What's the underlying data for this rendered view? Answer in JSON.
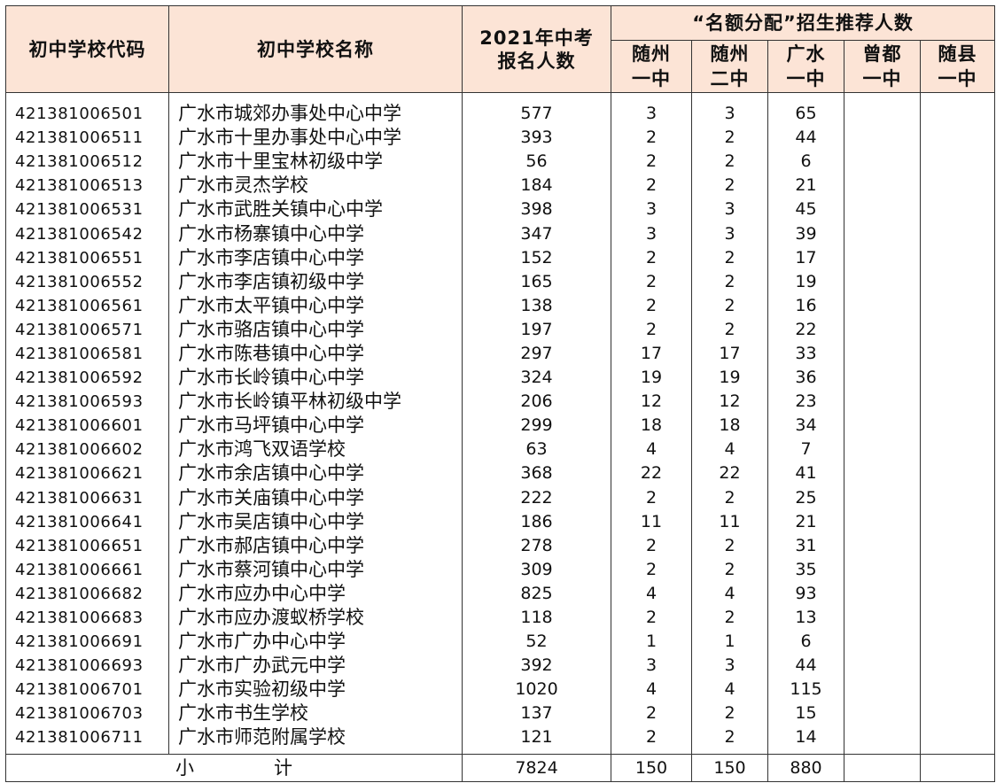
{
  "headers": {
    "code": "初中学校代码",
    "name": "初中学校名称",
    "enroll_line1": "2021年中考",
    "enroll_line2": "报名人数",
    "group": "“名额分配”招生推荐人数",
    "sub": [
      {
        "l1": "随州",
        "l2": "一中"
      },
      {
        "l1": "随州",
        "l2": "二中"
      },
      {
        "l1": "广水",
        "l2": "一中"
      },
      {
        "l1": "曾都",
        "l2": "一中"
      },
      {
        "l1": "随县",
        "l2": "一中"
      }
    ]
  },
  "rows": [
    {
      "code": "421381006501",
      "name": "广水市城郊办事处中心中学",
      "enroll": "577",
      "s1": "3",
      "s2": "3",
      "s3": "65"
    },
    {
      "code": "421381006511",
      "name": "广水市十里办事处中心中学",
      "enroll": "393",
      "s1": "2",
      "s2": "2",
      "s3": "44"
    },
    {
      "code": "421381006512",
      "name": "广水市十里宝林初级中学",
      "enroll": "56",
      "s1": "2",
      "s2": "2",
      "s3": "6"
    },
    {
      "code": "421381006513",
      "name": "广水市灵杰学校",
      "enroll": "184",
      "s1": "2",
      "s2": "2",
      "s3": "21"
    },
    {
      "code": "421381006531",
      "name": "广水市武胜关镇中心中学",
      "enroll": "398",
      "s1": "3",
      "s2": "3",
      "s3": "45"
    },
    {
      "code": "421381006542",
      "name": "广水市杨寨镇中心中学",
      "enroll": "347",
      "s1": "3",
      "s2": "3",
      "s3": "39"
    },
    {
      "code": "421381006551",
      "name": "广水市李店镇中心中学",
      "enroll": "152",
      "s1": "2",
      "s2": "2",
      "s3": "17"
    },
    {
      "code": "421381006552",
      "name": "广水市李店镇初级中学",
      "enroll": "165",
      "s1": "2",
      "s2": "2",
      "s3": "19"
    },
    {
      "code": "421381006561",
      "name": "广水市太平镇中心中学",
      "enroll": "138",
      "s1": "2",
      "s2": "2",
      "s3": "16"
    },
    {
      "code": "421381006571",
      "name": "广水市骆店镇中心中学",
      "enroll": "197",
      "s1": "2",
      "s2": "2",
      "s3": "22"
    },
    {
      "code": "421381006581",
      "name": "广水市陈巷镇中心中学",
      "enroll": "297",
      "s1": "17",
      "s2": "17",
      "s3": "33"
    },
    {
      "code": "421381006592",
      "name": "广水市长岭镇中心中学",
      "enroll": "324",
      "s1": "19",
      "s2": "19",
      "s3": "36"
    },
    {
      "code": "421381006593",
      "name": "广水市长岭镇平林初级中学",
      "enroll": "206",
      "s1": "12",
      "s2": "12",
      "s3": "23"
    },
    {
      "code": "421381006601",
      "name": "广水市马坪镇中心中学",
      "enroll": "299",
      "s1": "18",
      "s2": "18",
      "s3": "34"
    },
    {
      "code": "421381006602",
      "name": "广水市鸿飞双语学校",
      "enroll": "63",
      "s1": "4",
      "s2": "4",
      "s3": "7"
    },
    {
      "code": "421381006621",
      "name": "广水市余店镇中心中学",
      "enroll": "368",
      "s1": "22",
      "s2": "22",
      "s3": "41"
    },
    {
      "code": "421381006631",
      "name": "广水市关庙镇中心中学",
      "enroll": "222",
      "s1": "2",
      "s2": "2",
      "s3": "25"
    },
    {
      "code": "421381006641",
      "name": "广水市吴店镇中心中学",
      "enroll": "186",
      "s1": "11",
      "s2": "11",
      "s3": "21"
    },
    {
      "code": "421381006651",
      "name": "广水市郝店镇中心中学",
      "enroll": "278",
      "s1": "2",
      "s2": "2",
      "s3": "31"
    },
    {
      "code": "421381006661",
      "name": "广水市蔡河镇中心中学",
      "enroll": "309",
      "s1": "2",
      "s2": "2",
      "s3": "35"
    },
    {
      "code": "421381006682",
      "name": "广水市应办中心中学",
      "enroll": "825",
      "s1": "4",
      "s2": "4",
      "s3": "93"
    },
    {
      "code": "421381006683",
      "name": "广水市应办渡蚁桥学校",
      "enroll": "118",
      "s1": "2",
      "s2": "2",
      "s3": "13"
    },
    {
      "code": "421381006691",
      "name": "广水市广办中心中学",
      "enroll": "52",
      "s1": "1",
      "s2": "1",
      "s3": "6"
    },
    {
      "code": "421381006693",
      "name": "广水市广办武元中学",
      "enroll": "392",
      "s1": "3",
      "s2": "3",
      "s3": "44"
    },
    {
      "code": "421381006701",
      "name": "广水市实验初级中学",
      "enroll": "1020",
      "s1": "4",
      "s2": "4",
      "s3": "115"
    },
    {
      "code": "421381006703",
      "name": "广水市书生学校",
      "enroll": "137",
      "s1": "2",
      "s2": "2",
      "s3": "15"
    },
    {
      "code": "421381006711",
      "name": "广水市师范附属学校",
      "enroll": "121",
      "s1": "2",
      "s2": "2",
      "s3": "14"
    }
  ],
  "total": {
    "label": "小计",
    "enroll": "7824",
    "s1": "150",
    "s2": "150",
    "s3": "880",
    "s4": "",
    "s5": ""
  }
}
